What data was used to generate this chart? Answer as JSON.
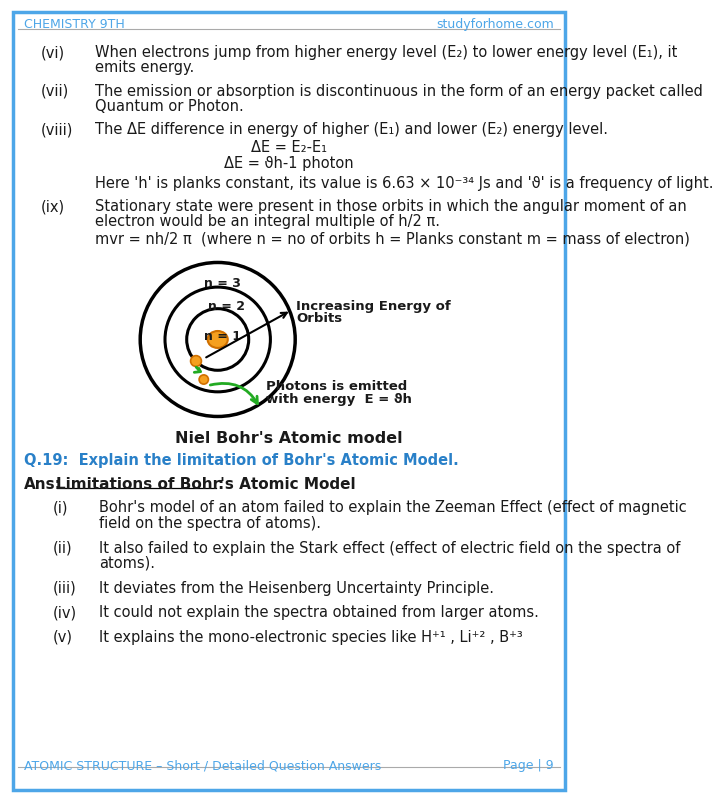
{
  "header_left": "CHEMISTRY 9TH",
  "header_right": "studyforhome.com",
  "header_color": "#4DA6E8",
  "footer_left": "ATOMIC STRUCTURE – Short / Detailed Question Answers",
  "footer_right": "Page | 9",
  "footer_color": "#4DA6E8",
  "bg_color": "#FFFFFF",
  "border_color": "#4DA6E8",
  "text_color": "#1a1a1a",
  "question_color": "#2980c8",
  "items_vi_ix": [
    {
      "label": "(vi)",
      "lines": [
        "When electrons jump from higher energy level (E₂) to lower energy level (E₁), it",
        "emits energy."
      ]
    },
    {
      "label": "(vii)",
      "lines": [
        "The emission or absorption is discontinuous in the form of an energy packet called",
        "Quantum or Photon."
      ]
    },
    {
      "label": "(viii)",
      "lines": [
        "The ΔE difference in energy of higher (E₁) and lower (E₂) energy level."
      ]
    },
    {
      "label": "(ix)",
      "lines": [
        "Stationary state were present in those orbits in which the angular moment of an",
        "electron would be an integral multiple of h/2 π."
      ]
    }
  ],
  "eq1": "ΔE = E₂-E₁",
  "eq2": "ΔE = ϑh-1 photon",
  "planck_text": "Here 'h' is planks constant, its value is 6.63 × 10⁻³⁴ Js and 'ϑ' is a frequency of light.",
  "mvr_text": "mvr = nh/2 π  (where n = no of orbits h = Planks constant m = mass of electron)",
  "diagram_title": "Niel Bohr's Atomic model",
  "q19": "Q.19:  Explain the limitation of Bohr's Atomic Model.",
  "ans_label": "Ans:",
  "ans_heading": "Limitations of Bohr's Atomic Model",
  "limitations": [
    {
      "label": "(i)",
      "lines": [
        "Bohr's model of an atom failed to explain the Zeeman Effect (effect of magnetic",
        "field on the spectra of atoms)."
      ]
    },
    {
      "label": "(ii)",
      "lines": [
        "It also failed to explain the Stark effect (effect of electric field on the spectra of",
        "atoms)."
      ]
    },
    {
      "label": "(iii)",
      "lines": [
        "It deviates from the Heisenberg Uncertainty Principle."
      ]
    },
    {
      "label": "(iv)",
      "lines": [
        "It could not explain the spectra obtained from larger atoms."
      ]
    },
    {
      "label": "(v)",
      "lines": [
        "It explains the mono-electronic species like H⁺¹ , Li⁺² , B⁺³"
      ]
    }
  ]
}
